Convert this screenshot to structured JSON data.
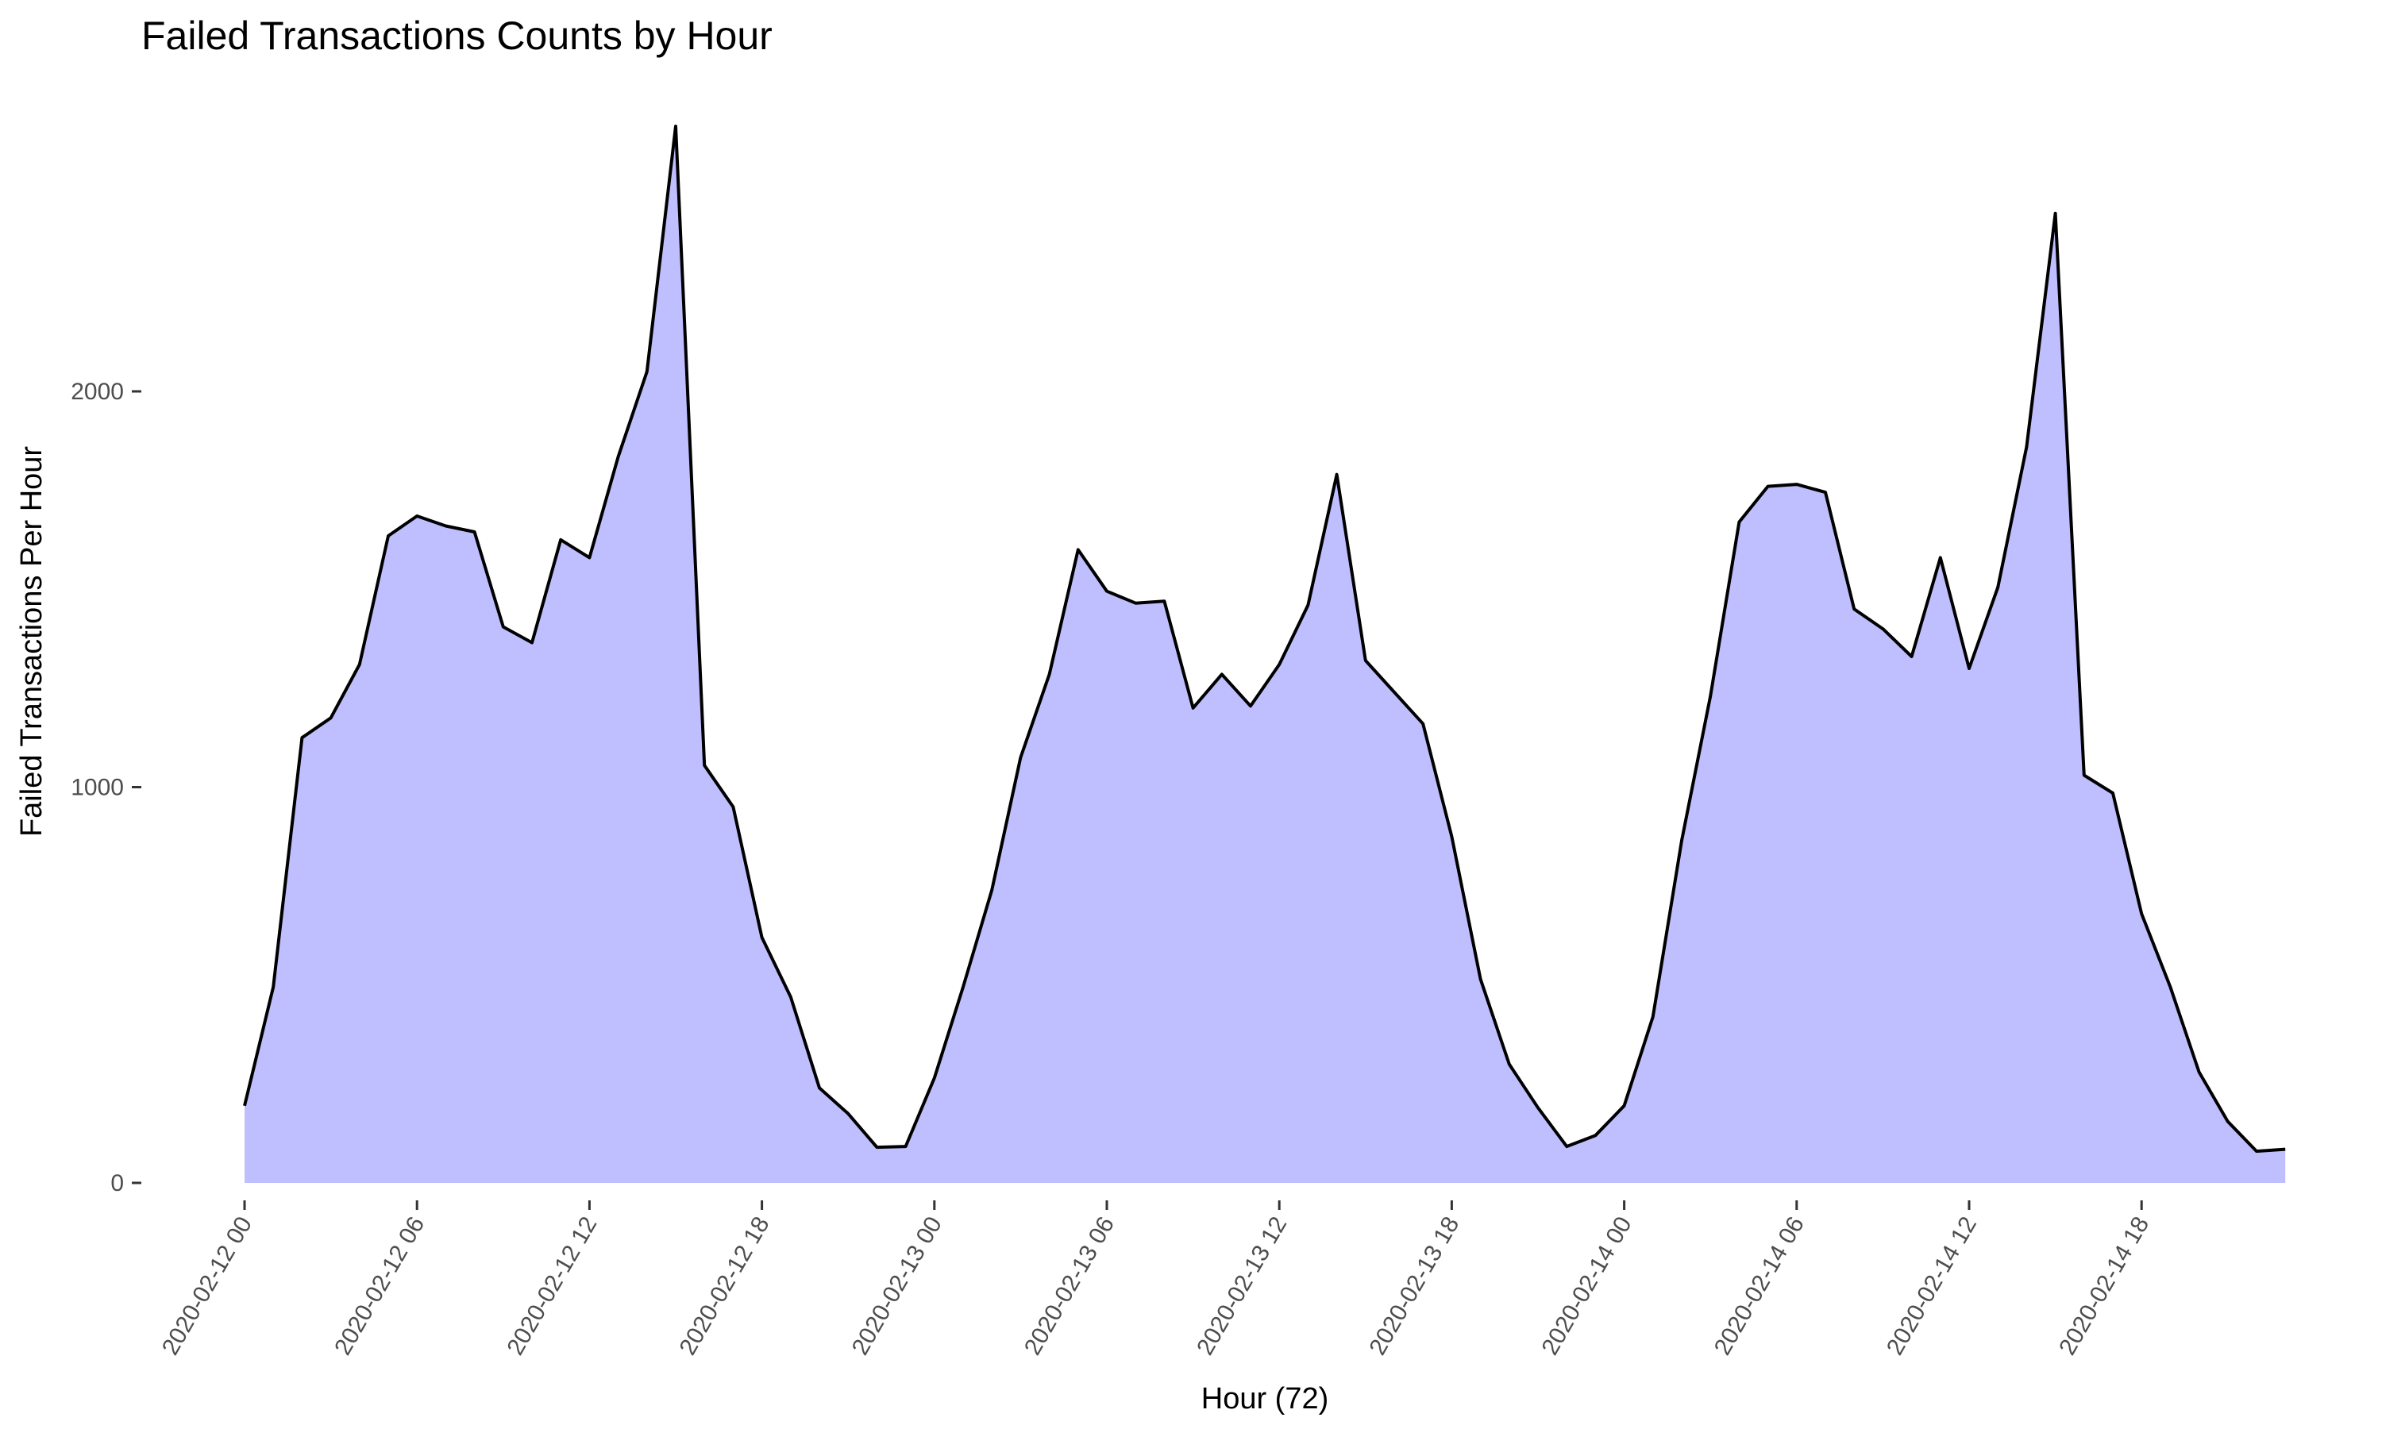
{
  "chart_data": {
    "type": "area",
    "title": "Failed Transactions Counts by Hour",
    "xlabel": "Hour (72)",
    "ylabel": "Failed Transactions Per Hour",
    "x_start": "2020-02-12 00",
    "x": [
      "2020-02-12 00",
      "2020-02-12 01",
      "2020-02-12 02",
      "2020-02-12 03",
      "2020-02-12 04",
      "2020-02-12 05",
      "2020-02-12 06",
      "2020-02-12 07",
      "2020-02-12 08",
      "2020-02-12 09",
      "2020-02-12 10",
      "2020-02-12 11",
      "2020-02-12 12",
      "2020-02-12 13",
      "2020-02-12 14",
      "2020-02-12 15",
      "2020-02-12 16",
      "2020-02-12 17",
      "2020-02-12 18",
      "2020-02-12 19",
      "2020-02-12 20",
      "2020-02-12 21",
      "2020-02-12 22",
      "2020-02-12 23",
      "2020-02-13 00",
      "2020-02-13 01",
      "2020-02-13 02",
      "2020-02-13 03",
      "2020-02-13 04",
      "2020-02-13 05",
      "2020-02-13 06",
      "2020-02-13 07",
      "2020-02-13 08",
      "2020-02-13 09",
      "2020-02-13 10",
      "2020-02-13 11",
      "2020-02-13 12",
      "2020-02-13 13",
      "2020-02-13 14",
      "2020-02-13 15",
      "2020-02-13 16",
      "2020-02-13 17",
      "2020-02-13 18",
      "2020-02-13 19",
      "2020-02-13 20",
      "2020-02-13 21",
      "2020-02-13 22",
      "2020-02-13 23",
      "2020-02-14 00",
      "2020-02-14 01",
      "2020-02-14 02",
      "2020-02-14 03",
      "2020-02-14 04",
      "2020-02-14 05",
      "2020-02-14 06",
      "2020-02-14 07",
      "2020-02-14 08",
      "2020-02-14 09",
      "2020-02-14 10",
      "2020-02-14 11",
      "2020-02-14 12",
      "2020-02-14 13",
      "2020-02-14 14",
      "2020-02-14 15",
      "2020-02-14 16",
      "2020-02-14 17",
      "2020-02-14 18",
      "2020-02-14 19",
      "2020-02-14 20",
      "2020-02-14 21",
      "2020-02-14 22",
      "2020-02-14 23"
    ],
    "values": [
      195,
      495,
      1125,
      1175,
      1310,
      1635,
      1685,
      1660,
      1645,
      1405,
      1365,
      1625,
      1580,
      1835,
      2050,
      2670,
      1055,
      950,
      620,
      470,
      240,
      175,
      90,
      92,
      265,
      495,
      740,
      1075,
      1285,
      1600,
      1495,
      1465,
      1470,
      1200,
      1285,
      1205,
      1310,
      1460,
      1790,
      1320,
      1240,
      1160,
      875,
      515,
      300,
      190,
      92,
      120,
      195,
      420,
      865,
      1230,
      1670,
      1760,
      1765,
      1745,
      1450,
      1400,
      1330,
      1580,
      1300,
      1505,
      1860,
      2450,
      1030,
      985,
      680,
      495,
      280,
      155,
      80,
      85
    ],
    "yticks": [
      0,
      1000,
      2000
    ],
    "ytick_labels": [
      "0",
      "1000",
      "2000"
    ],
    "ylim": [
      -60,
      2750
    ],
    "xtick_hours": [
      0,
      6,
      12,
      18,
      24,
      30,
      36,
      42,
      48,
      54,
      60,
      66
    ],
    "xtick_labels": [
      "2020-02-12 00",
      "2020-02-12 06",
      "2020-02-12 12",
      "2020-02-12 18",
      "2020-02-13 00",
      "2020-02-13 06",
      "2020-02-13 12",
      "2020-02-13 18",
      "2020-02-14 00",
      "2020-02-14 06",
      "2020-02-14 12",
      "2020-02-14 18"
    ],
    "grid": false,
    "fill_color": "#bfbfff",
    "line_color": "#000000"
  }
}
